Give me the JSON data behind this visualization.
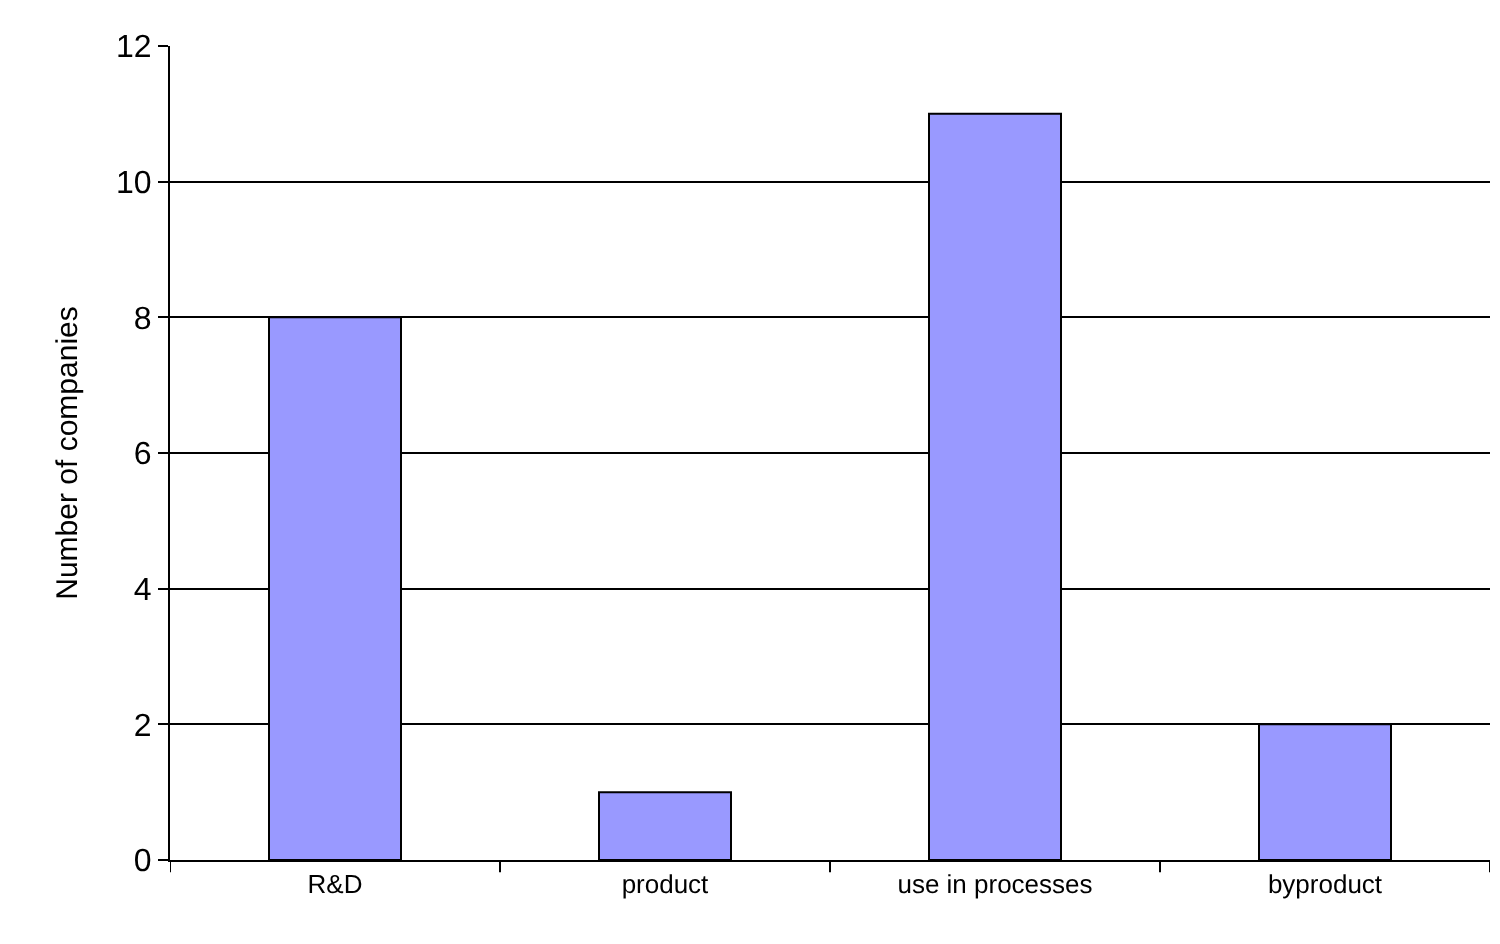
{
  "chart_data": {
    "type": "bar",
    "ylabel": "Number of companies",
    "categories": [
      "R&D",
      "product",
      "use in processes",
      "byproduct"
    ],
    "values": [
      8,
      1,
      11,
      2
    ],
    "color": "#9999ff",
    "ylim": [
      0,
      12
    ],
    "yticks": [
      0,
      2,
      4,
      6,
      8,
      10,
      12
    ],
    "grid": "y",
    "legend": false
  }
}
